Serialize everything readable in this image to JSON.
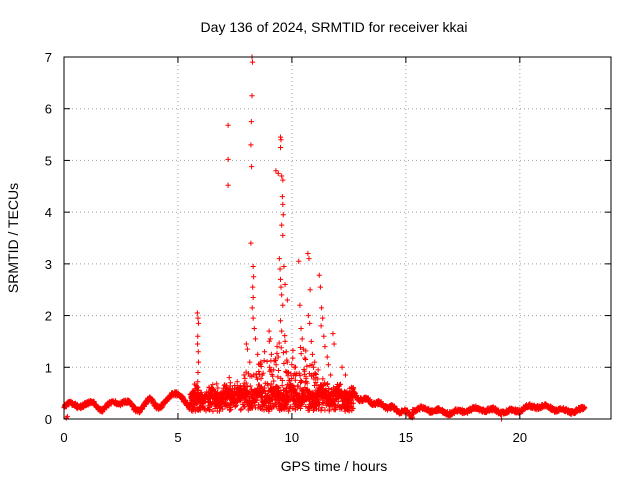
{
  "chart_data": {
    "type": "scatter",
    "title": "Day 136 of 2024, SRMTID for receiver kkai",
    "xlabel": "GPS time / hours",
    "ylabel": "SRMTID / TECUs",
    "xlim": [
      0,
      24
    ],
    "ylim": [
      0,
      7
    ],
    "xticks": [
      "0",
      "5",
      "10",
      "15",
      "20"
    ],
    "yticks": [
      "0",
      "1",
      "2",
      "3",
      "4",
      "5",
      "6",
      "7"
    ],
    "grid": true,
    "marker": "+",
    "series": [
      {
        "name": "SRMTID",
        "color": "#ff0000",
        "points": [
          [
            5.85,
            2.05
          ],
          [
            5.88,
            1.95
          ],
          [
            5.9,
            1.85
          ],
          [
            5.87,
            1.6
          ],
          [
            5.86,
            1.45
          ],
          [
            5.89,
            1.3
          ],
          [
            5.9,
            1.1
          ],
          [
            5.88,
            0.9
          ],
          [
            5.87,
            0.72
          ],
          [
            6.7,
            0.68
          ],
          [
            6.75,
            0.6
          ],
          [
            7.2,
            5.68
          ],
          [
            7.2,
            5.02
          ],
          [
            7.2,
            4.52
          ],
          [
            7.25,
            0.8
          ],
          [
            7.3,
            0.7
          ],
          [
            7.6,
            0.72
          ],
          [
            7.9,
            0.85
          ],
          [
            8.0,
            1.45
          ],
          [
            8.05,
            1.35
          ],
          [
            8.15,
            1.1
          ],
          [
            8.25,
            7.0
          ],
          [
            8.27,
            6.9
          ],
          [
            8.25,
            6.25
          ],
          [
            8.22,
            5.75
          ],
          [
            8.2,
            5.3
          ],
          [
            8.23,
            4.88
          ],
          [
            8.2,
            3.4
          ],
          [
            8.3,
            2.95
          ],
          [
            8.32,
            2.75
          ],
          [
            8.28,
            2.55
          ],
          [
            8.3,
            2.35
          ],
          [
            8.26,
            2.15
          ],
          [
            8.3,
            1.95
          ],
          [
            8.35,
            1.75
          ],
          [
            8.4,
            1.55
          ],
          [
            8.5,
            1.25
          ],
          [
            8.6,
            1.05
          ],
          [
            8.7,
            0.85
          ],
          [
            8.8,
            1.3
          ],
          [
            9.0,
            1.7
          ],
          [
            9.05,
            1.55
          ],
          [
            9.1,
            1.25
          ],
          [
            9.2,
            0.95
          ],
          [
            9.3,
            4.8
          ],
          [
            9.4,
            4.75
          ],
          [
            9.5,
            5.45
          ],
          [
            9.52,
            5.4
          ],
          [
            9.5,
            5.25
          ],
          [
            9.55,
            4.7
          ],
          [
            9.6,
            4.62
          ],
          [
            9.58,
            4.3
          ],
          [
            9.6,
            4.15
          ],
          [
            9.62,
            3.95
          ],
          [
            9.55,
            3.75
          ],
          [
            9.6,
            3.55
          ],
          [
            9.45,
            3.1
          ],
          [
            9.48,
            2.9
          ],
          [
            9.5,
            2.7
          ],
          [
            9.52,
            2.55
          ],
          [
            9.55,
            2.4
          ],
          [
            9.6,
            2.2
          ],
          [
            9.5,
            1.9
          ],
          [
            9.55,
            1.7
          ],
          [
            9.7,
            1.5
          ],
          [
            9.75,
            1.3
          ],
          [
            9.8,
            1.1
          ],
          [
            9.85,
            0.9
          ],
          [
            9.9,
            0.75
          ],
          [
            9.4,
            1.2
          ],
          [
            9.35,
            1.4
          ],
          [
            9.7,
            2.6
          ],
          [
            9.8,
            2.3
          ],
          [
            9.65,
            2.95
          ],
          [
            9.75,
            0.6
          ],
          [
            10.05,
            0.55
          ],
          [
            10.1,
            1.0
          ],
          [
            10.15,
            0.75
          ],
          [
            10.3,
            3.05
          ],
          [
            10.35,
            2.2
          ],
          [
            10.4,
            1.75
          ],
          [
            10.45,
            1.55
          ],
          [
            10.5,
            1.35
          ],
          [
            10.6,
            1.15
          ],
          [
            10.7,
            3.2
          ],
          [
            10.75,
            3.1
          ],
          [
            10.8,
            2.5
          ],
          [
            10.72,
            2.0
          ],
          [
            10.78,
            1.85
          ],
          [
            10.85,
            1.5
          ],
          [
            10.9,
            1.25
          ],
          [
            10.95,
            1.0
          ],
          [
            11.05,
            0.8
          ],
          [
            11.1,
            0.65
          ],
          [
            11.0,
            1.1
          ],
          [
            11.15,
            0.95
          ],
          [
            11.2,
            2.78
          ],
          [
            11.25,
            2.55
          ],
          [
            11.3,
            2.15
          ],
          [
            11.35,
            1.95
          ],
          [
            11.28,
            1.8
          ],
          [
            11.4,
            1.6
          ],
          [
            11.45,
            1.4
          ],
          [
            11.55,
            1.2
          ],
          [
            11.6,
            1.05
          ],
          [
            11.7,
            0.85
          ],
          [
            11.8,
            1.65
          ],
          [
            11.85,
            1.45
          ],
          [
            12.0,
            0.6
          ],
          [
            12.2,
            1.0
          ],
          [
            12.35,
            0.85
          ]
        ]
      }
    ]
  }
}
